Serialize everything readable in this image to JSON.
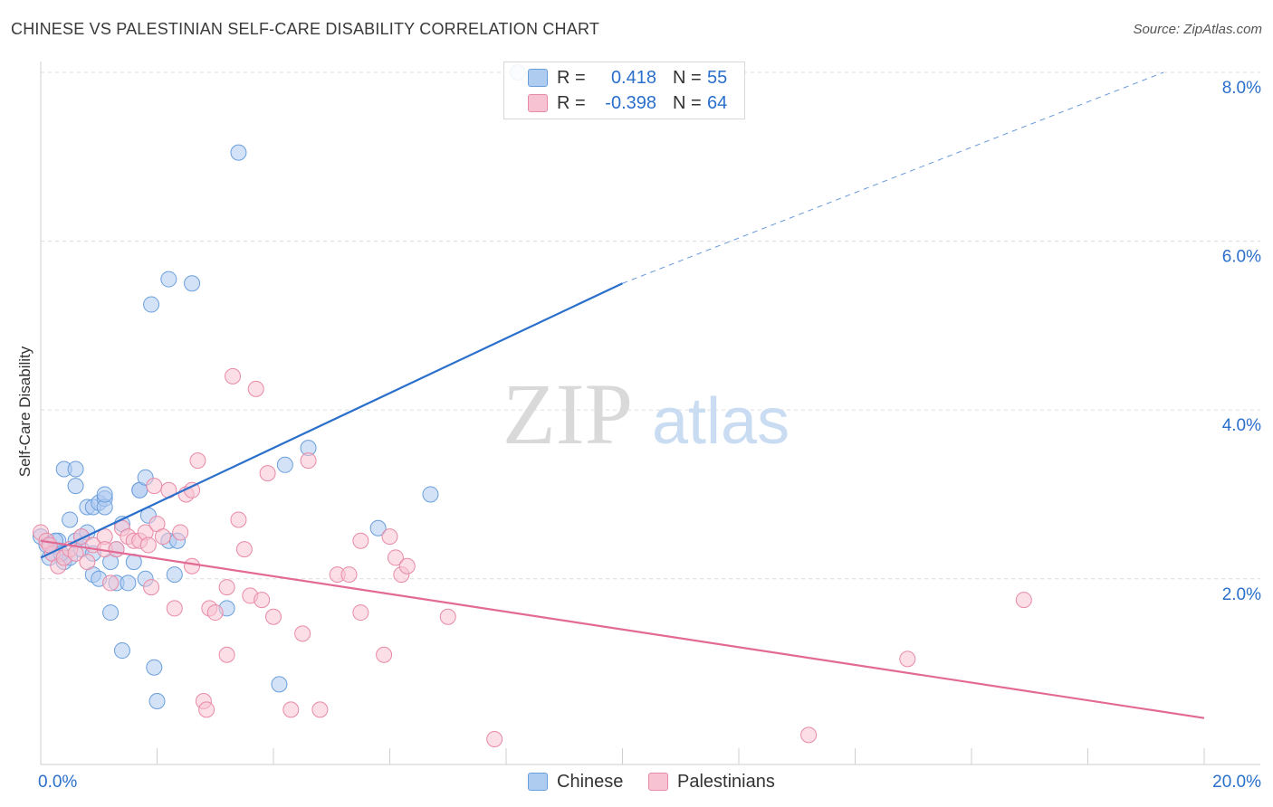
{
  "title": "CHINESE VS PALESTINIAN SELF-CARE DISABILITY CORRELATION CHART",
  "source": "Source: ZipAtlas.com",
  "watermark": {
    "zip": "ZIP",
    "atlas": "atlas"
  },
  "legend": {
    "rows": [
      {
        "r_label": "R =",
        "r_value": "0.418",
        "n_label": "N =",
        "n_value": "55"
      },
      {
        "r_label": "R =",
        "r_value": "-0.398",
        "n_label": "N =",
        "n_value": "64"
      }
    ]
  },
  "bottom_legend": {
    "chinese": "Chinese",
    "palestinians": "Palestinians"
  },
  "colors": {
    "chinese_fill": "#aecbf0",
    "chinese_stroke": "#6a9fdc",
    "chinese_line": "#2a6fcc",
    "pal_fill": "#f7c2d1",
    "pal_stroke": "#e88aa6",
    "pal_line": "#e26a94",
    "axis_text": "#2a6fcc",
    "grid": "#dcdcdc"
  },
  "chart_data": {
    "type": "scatter",
    "title": "CHINESE VS PALESTINIAN SELF-CARE DISABILITY CORRELATION CHART",
    "xlabel": "",
    "ylabel": "Self-Care Disability",
    "xlim": [
      0,
      20
    ],
    "ylim": [
      0,
      8.0
    ],
    "x_tick_labels": [
      "0.0%",
      "20.0%"
    ],
    "y_ticks": [
      2,
      4,
      6,
      8
    ],
    "y_tick_labels": [
      "2.0%",
      "4.0%",
      "6.0%",
      "8.0%"
    ],
    "grid": true,
    "legend_position": "top-center",
    "series": [
      {
        "name": "Chinese",
        "r": 0.418,
        "n": 55,
        "trend": {
          "x0": 0,
          "y0": 2.25,
          "x1": 10,
          "y1": 5.5,
          "dashed_to_x": 20,
          "dashed_to_y": 8.0
        },
        "points": [
          [
            0.0,
            2.5
          ],
          [
            0.1,
            2.4
          ],
          [
            0.2,
            2.3
          ],
          [
            0.3,
            2.45
          ],
          [
            0.4,
            2.2
          ],
          [
            0.4,
            3.3
          ],
          [
            0.5,
            2.25
          ],
          [
            0.5,
            2.7
          ],
          [
            0.6,
            2.45
          ],
          [
            0.6,
            3.1
          ],
          [
            0.6,
            3.3
          ],
          [
            0.7,
            2.35
          ],
          [
            0.7,
            2.5
          ],
          [
            0.8,
            2.85
          ],
          [
            0.8,
            2.55
          ],
          [
            0.9,
            2.3
          ],
          [
            0.9,
            2.05
          ],
          [
            0.9,
            2.85
          ],
          [
            1.0,
            2.9
          ],
          [
            1.0,
            2.0
          ],
          [
            1.1,
            2.95
          ],
          [
            1.1,
            2.85
          ],
          [
            1.1,
            3.0
          ],
          [
            1.2,
            2.2
          ],
          [
            1.2,
            1.6
          ],
          [
            1.3,
            2.35
          ],
          [
            1.3,
            1.95
          ],
          [
            1.4,
            2.65
          ],
          [
            1.4,
            1.15
          ],
          [
            1.5,
            1.95
          ],
          [
            1.6,
            2.2
          ],
          [
            1.7,
            3.05
          ],
          [
            1.7,
            3.05
          ],
          [
            1.8,
            2.0
          ],
          [
            1.8,
            3.2
          ],
          [
            1.85,
            2.75
          ],
          [
            1.9,
            5.25
          ],
          [
            1.95,
            0.95
          ],
          [
            2.0,
            0.55
          ],
          [
            2.2,
            5.55
          ],
          [
            2.2,
            2.45
          ],
          [
            2.35,
            2.45
          ],
          [
            2.3,
            2.05
          ],
          [
            2.6,
            5.5
          ],
          [
            3.2,
            1.65
          ],
          [
            3.4,
            7.05
          ],
          [
            4.1,
            0.75
          ],
          [
            4.2,
            3.35
          ],
          [
            4.6,
            3.55
          ],
          [
            5.8,
            2.6
          ],
          [
            6.7,
            3.0
          ],
          [
            8.2,
            8.0
          ],
          [
            0.15,
            2.25
          ],
          [
            0.25,
            2.45
          ],
          [
            0.35,
            2.3
          ]
        ]
      },
      {
        "name": "Palestinians",
        "r": -0.398,
        "n": 64,
        "trend": {
          "x0": 0,
          "y0": 2.45,
          "x1": 20,
          "y1": 0.35
        },
        "points": [
          [
            0.0,
            2.55
          ],
          [
            0.1,
            2.45
          ],
          [
            0.2,
            2.3
          ],
          [
            0.3,
            2.15
          ],
          [
            0.4,
            2.25
          ],
          [
            0.5,
            2.35
          ],
          [
            0.6,
            2.3
          ],
          [
            0.7,
            2.5
          ],
          [
            0.8,
            2.2
          ],
          [
            0.9,
            2.4
          ],
          [
            1.1,
            2.5
          ],
          [
            1.1,
            2.35
          ],
          [
            1.2,
            1.95
          ],
          [
            1.3,
            2.35
          ],
          [
            1.4,
            2.6
          ],
          [
            1.5,
            2.5
          ],
          [
            1.6,
            2.45
          ],
          [
            1.7,
            2.45
          ],
          [
            1.8,
            2.55
          ],
          [
            1.85,
            2.4
          ],
          [
            1.9,
            1.9
          ],
          [
            1.95,
            3.1
          ],
          [
            2.0,
            2.65
          ],
          [
            2.1,
            2.5
          ],
          [
            2.2,
            3.05
          ],
          [
            2.3,
            1.65
          ],
          [
            2.4,
            2.55
          ],
          [
            2.5,
            3.0
          ],
          [
            2.6,
            2.15
          ],
          [
            2.6,
            3.05
          ],
          [
            2.7,
            3.4
          ],
          [
            2.8,
            0.55
          ],
          [
            2.85,
            0.45
          ],
          [
            2.9,
            1.65
          ],
          [
            3.0,
            1.6
          ],
          [
            3.2,
            1.9
          ],
          [
            3.2,
            1.1
          ],
          [
            3.3,
            4.4
          ],
          [
            3.4,
            2.7
          ],
          [
            3.5,
            2.35
          ],
          [
            3.6,
            1.8
          ],
          [
            3.7,
            4.25
          ],
          [
            3.8,
            1.75
          ],
          [
            3.9,
            3.25
          ],
          [
            4.0,
            1.55
          ],
          [
            4.3,
            0.45
          ],
          [
            4.5,
            1.35
          ],
          [
            4.6,
            3.4
          ],
          [
            4.8,
            0.45
          ],
          [
            5.1,
            2.05
          ],
          [
            5.3,
            2.05
          ],
          [
            5.5,
            2.45
          ],
          [
            5.5,
            1.6
          ],
          [
            5.9,
            1.1
          ],
          [
            6.0,
            2.5
          ],
          [
            6.1,
            2.25
          ],
          [
            6.2,
            2.05
          ],
          [
            6.3,
            2.15
          ],
          [
            7.0,
            1.55
          ],
          [
            7.8,
            0.1
          ],
          [
            13.2,
            0.15
          ],
          [
            14.9,
            1.05
          ],
          [
            16.9,
            1.75
          ],
          [
            0.15,
            2.4
          ]
        ]
      }
    ]
  }
}
